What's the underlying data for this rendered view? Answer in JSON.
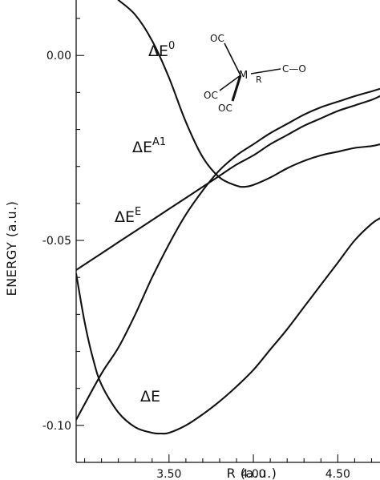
{
  "chart_data": {
    "type": "line",
    "title": "",
    "xlabel": "R (a.u.)",
    "ylabel": "ENERGY (a.u.)",
    "xlim": [
      2.95,
      4.75
    ],
    "ylim": [
      -0.11,
      0.015
    ],
    "x_ticks": [
      3.5,
      4.0,
      4.5
    ],
    "x_tick_labels": [
      "3.50",
      "4.00",
      "4.50"
    ],
    "y_ticks": [
      0.0,
      -0.05,
      -0.1
    ],
    "y_tick_labels": [
      "0.00",
      "-0.05",
      "-0.10"
    ],
    "grid": false,
    "legend": "none",
    "series": [
      {
        "id": "dE0",
        "label": {
          "base": "ΔE",
          "sup": "0"
        },
        "x": [
          3.2,
          3.3,
          3.4,
          3.5,
          3.6,
          3.7,
          3.8,
          3.9,
          3.95,
          4.0,
          4.1,
          4.2,
          4.3,
          4.4,
          4.5,
          4.6,
          4.7,
          4.75
        ],
        "y": [
          0.015,
          0.011,
          0.004,
          -0.006,
          -0.018,
          -0.0275,
          -0.033,
          -0.0352,
          -0.0355,
          -0.035,
          -0.033,
          -0.0305,
          -0.0285,
          -0.027,
          -0.026,
          -0.025,
          -0.0245,
          -0.024
        ]
      },
      {
        "id": "dEA1",
        "label": {
          "base": "ΔE",
          "sup": "A1"
        },
        "x": [
          2.95,
          3.1,
          3.2,
          3.3,
          3.4,
          3.5,
          3.6,
          3.7,
          3.8,
          3.9,
          4.0,
          4.1,
          4.2,
          4.3,
          4.4,
          4.5,
          4.6,
          4.7,
          4.75
        ],
        "y": [
          -0.058,
          -0.0535,
          -0.0505,
          -0.0475,
          -0.0445,
          -0.0415,
          -0.0385,
          -0.0355,
          -0.0325,
          -0.0295,
          -0.027,
          -0.024,
          -0.0215,
          -0.019,
          -0.017,
          -0.015,
          -0.0135,
          -0.012,
          -0.011
        ]
      },
      {
        "id": "dEE",
        "label": {
          "base": "ΔE",
          "sup": "E"
        },
        "x": [
          2.95,
          3.1,
          3.2,
          3.3,
          3.4,
          3.5,
          3.6,
          3.7,
          3.8,
          3.9,
          4.0,
          4.1,
          4.2,
          4.3,
          4.4,
          4.5,
          4.6,
          4.7,
          4.75
        ],
        "y": [
          -0.0985,
          -0.086,
          -0.079,
          -0.07,
          -0.06,
          -0.051,
          -0.043,
          -0.0365,
          -0.031,
          -0.027,
          -0.024,
          -0.021,
          -0.0185,
          -0.016,
          -0.014,
          -0.0125,
          -0.011,
          -0.0097,
          -0.009
        ]
      },
      {
        "id": "dE",
        "label": {
          "base": "ΔE",
          "sup": ""
        },
        "x": [
          2.95,
          3.0,
          3.05,
          3.1,
          3.2,
          3.3,
          3.4,
          3.45,
          3.5,
          3.6,
          3.7,
          3.8,
          3.9,
          4.0,
          4.1,
          4.2,
          4.3,
          4.4,
          4.5,
          4.6,
          4.7,
          4.75
        ],
        "y": [
          -0.059,
          -0.072,
          -0.082,
          -0.089,
          -0.0965,
          -0.1005,
          -0.102,
          -0.1022,
          -0.102,
          -0.1,
          -0.097,
          -0.0935,
          -0.0895,
          -0.085,
          -0.0795,
          -0.074,
          -0.068,
          -0.062,
          -0.056,
          -0.05,
          -0.0455,
          -0.044
        ]
      }
    ],
    "inset_labels": {
      "oc_top": "OC",
      "oc_left": "OC",
      "oc_bottom": "OC",
      "metal": "M",
      "r": "R",
      "co": "C—O"
    }
  }
}
